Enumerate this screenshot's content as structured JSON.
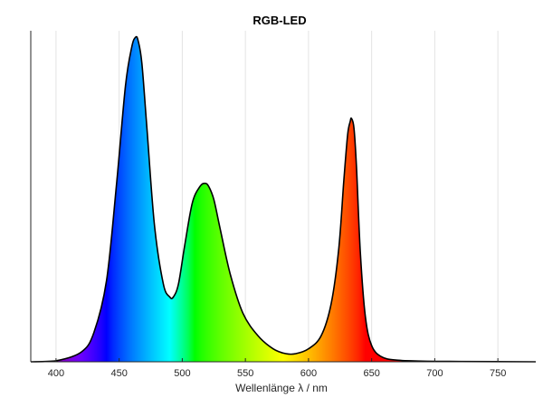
{
  "chart_data": {
    "type": "area",
    "title": "RGB-LED",
    "xlabel": "Wellenlänge λ / nm",
    "ylabel": "",
    "xlim": [
      380,
      780
    ],
    "ylim": [
      0,
      1.02
    ],
    "x_ticks": [
      400,
      450,
      500,
      550,
      600,
      650,
      700,
      750
    ],
    "grid": "vertical",
    "fill": "spectral-colors",
    "series": [
      {
        "x": [
          380,
          400,
          420,
          430,
          440,
          448,
          455,
          460,
          463,
          465,
          468,
          472,
          478,
          485,
          490,
          493,
          497,
          502,
          508,
          514,
          518,
          521,
          525,
          530,
          538,
          548,
          560,
          572,
          582,
          590,
          600,
          610,
          618,
          624,
          628,
          631,
          633,
          634,
          636,
          638,
          641,
          645,
          650,
          658,
          670,
          690,
          720,
          780
        ],
        "y": [
          0.0,
          0.003,
          0.03,
          0.09,
          0.25,
          0.55,
          0.85,
          0.97,
          1.0,
          0.99,
          0.92,
          0.72,
          0.42,
          0.24,
          0.2,
          0.2,
          0.24,
          0.36,
          0.49,
          0.54,
          0.55,
          0.54,
          0.5,
          0.41,
          0.27,
          0.15,
          0.08,
          0.04,
          0.025,
          0.025,
          0.04,
          0.08,
          0.18,
          0.35,
          0.56,
          0.7,
          0.74,
          0.75,
          0.72,
          0.6,
          0.34,
          0.14,
          0.05,
          0.015,
          0.005,
          0.002,
          0.001,
          0.0
        ]
      }
    ]
  }
}
